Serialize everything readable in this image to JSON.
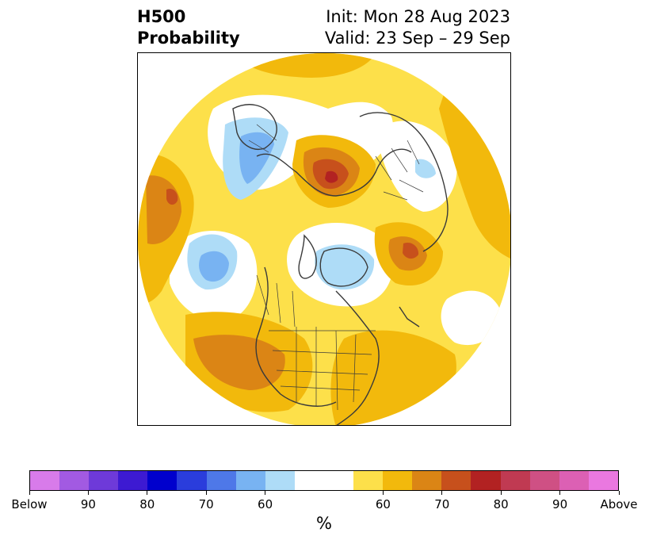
{
  "title": {
    "left_line1": "H500",
    "left_line2": "Probability",
    "right_line1": "Init: Mon 28 Aug 2023",
    "right_line2": "Valid: 23 Sep – 29 Sep"
  },
  "colors": {
    "below_60": "#aedcf7",
    "below_70": "#78b3f2",
    "below_80": "#4e78e8",
    "above_60": "#fde04a",
    "above_70": "#f2b90c",
    "above_80": "#db8515",
    "above_90": "#c7501c",
    "above_max": "#b22222",
    "coast": "#3a3a3a"
  },
  "colorbar": {
    "segments": [
      "#d87bea",
      "#a25ae2",
      "#6e3ad9",
      "#3d1ad2",
      "#0000cd",
      "#2a3ddc",
      "#4e78e8",
      "#78b3f2",
      "#aedcf7",
      "#ffffff",
      "#ffffff",
      "#fde04a",
      "#f2b90c",
      "#db8515",
      "#c7501c",
      "#b22222",
      "#c03a52",
      "#cf5084",
      "#dc60b4",
      "#ea78e0"
    ],
    "labels": [
      "Below",
      "90",
      "80",
      "70",
      "60",
      "60",
      "70",
      "80",
      "90",
      "Above"
    ],
    "unit": "%"
  }
}
